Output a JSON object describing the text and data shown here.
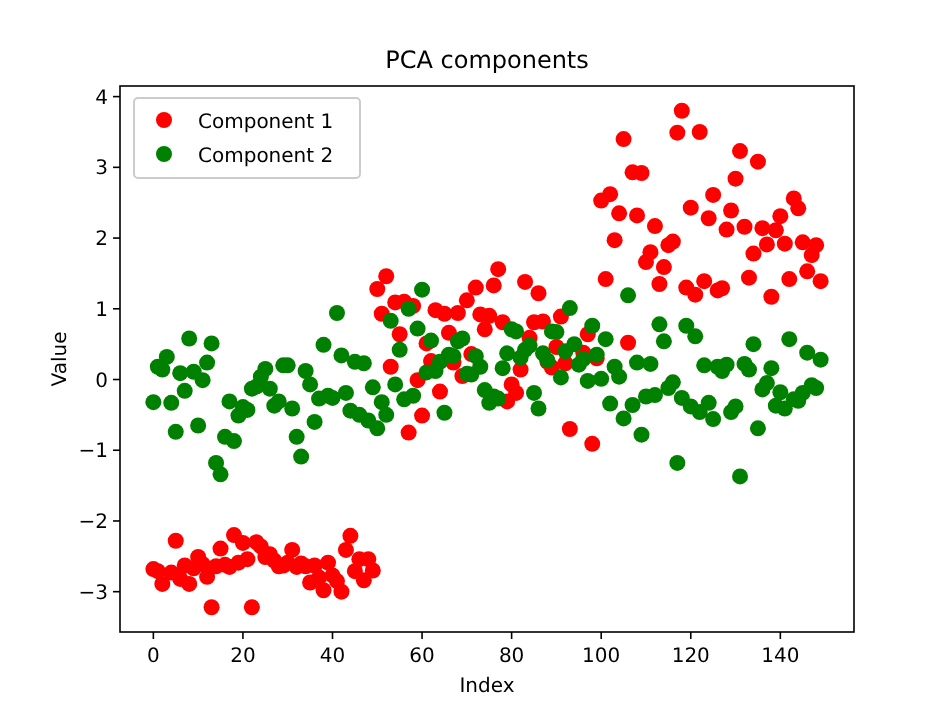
{
  "chart_data": {
    "type": "scatter",
    "title": "PCA components",
    "xlabel": "Index",
    "ylabel": "Value",
    "xlim": [
      -7.45,
      156.45
    ],
    "ylim": [
      -3.57,
      4.15
    ],
    "xticks": [
      0,
      20,
      40,
      60,
      80,
      100,
      120,
      140
    ],
    "yticks": [
      -3,
      -2,
      -1,
      0,
      1,
      2,
      3,
      4
    ],
    "legend": "top left",
    "marker": "circle",
    "grid": false,
    "x": [
      0,
      1,
      2,
      3,
      4,
      5,
      6,
      7,
      8,
      9,
      10,
      11,
      12,
      13,
      14,
      15,
      16,
      17,
      18,
      19,
      20,
      21,
      22,
      23,
      24,
      25,
      26,
      27,
      28,
      29,
      30,
      31,
      32,
      33,
      34,
      35,
      36,
      37,
      38,
      39,
      40,
      41,
      42,
      43,
      44,
      45,
      46,
      47,
      48,
      49,
      50,
      51,
      52,
      53,
      54,
      55,
      56,
      57,
      58,
      59,
      60,
      61,
      62,
      63,
      64,
      65,
      66,
      67,
      68,
      69,
      70,
      71,
      72,
      73,
      74,
      75,
      76,
      77,
      78,
      79,
      80,
      81,
      82,
      83,
      84,
      85,
      86,
      87,
      88,
      89,
      90,
      91,
      92,
      93,
      94,
      95,
      96,
      97,
      98,
      99,
      100,
      101,
      102,
      103,
      104,
      105,
      106,
      107,
      108,
      109,
      110,
      111,
      112,
      113,
      114,
      115,
      116,
      117,
      118,
      119,
      120,
      121,
      122,
      123,
      124,
      125,
      126,
      127,
      128,
      129,
      130,
      131,
      132,
      133,
      134,
      135,
      136,
      137,
      138,
      139,
      140,
      141,
      142,
      143,
      144,
      145,
      146,
      147,
      148,
      149
    ],
    "series": [
      {
        "name": "Component 1",
        "color": "#ff0000",
        "values": [
          -2.68,
          -2.71,
          -2.89,
          null,
          -2.73,
          -2.28,
          -2.82,
          -2.63,
          -2.89,
          -2.67,
          -2.51,
          -2.61,
          -2.79,
          -3.22,
          -2.64,
          -2.39,
          -2.62,
          -2.65,
          -2.2,
          -2.59,
          -2.31,
          -2.54,
          -3.22,
          -2.3,
          -2.36,
          -2.51,
          -2.47,
          -2.56,
          -2.64,
          -2.63,
          -2.59,
          -2.41,
          -2.65,
          -2.6,
          -2.64,
          -2.87,
          -2.63,
          -2.8,
          -2.98,
          -2.59,
          -2.77,
          -2.85,
          -3,
          -2.41,
          -2.21,
          -2.71,
          -2.54,
          -2.84,
          -2.54,
          -2.7,
          1.28,
          0.93,
          1.46,
          0.18,
          1.09,
          0.64,
          1.1,
          -0.75,
          1.04,
          -0.01,
          -0.51,
          0.51,
          0.26,
          0.98,
          -0.17,
          0.93,
          0.66,
          0.24,
          0.94,
          0.05,
          1.12,
          0.36,
          1.3,
          0.92,
          0.71,
          0.9,
          1.33,
          1.56,
          0.81,
          -0.31,
          -0.07,
          -0.19,
          0.14,
          1.38,
          0.59,
          0.81,
          1.22,
          0.82,
          0.25,
          0.17,
          0.46,
          0.89,
          0.23,
          -0.7,
          null,
          null,
          0.38,
          0.64,
          -0.91,
          0.3,
          2.53,
          1.42,
          2.62,
          1.97,
          2.35,
          3.4,
          0.52,
          2.93,
          2.32,
          2.92,
          1.66,
          1.8,
          2.17,
          1.35,
          1.59,
          1.9,
          1.95,
          3.49,
          3.8,
          1.3,
          2.43,
          1.2,
          3.5,
          1.39,
          2.28,
          2.61,
          1.26,
          1.29,
          2.12,
          2.39,
          2.84,
          3.23,
          2.16,
          1.44,
          1.78,
          3.08,
          2.14,
          1.91,
          1.17,
          2.11,
          2.31,
          1.92,
          1.42,
          2.56,
          2.42,
          1.94,
          1.53,
          1.76,
          1.9,
          1.39
        ]
      },
      {
        "name": "Component 2",
        "color": "#008000",
        "values": [
          -0.32,
          0.18,
          0.14,
          0.32,
          -0.33,
          -0.74,
          0.09,
          -0.16,
          0.58,
          0.11,
          -0.65,
          -0.01,
          0.24,
          0.51,
          -1.18,
          -1.34,
          -0.81,
          -0.31,
          -0.87,
          -0.51,
          -0.39,
          -0.43,
          -0.13,
          -0.1,
          0.04,
          0.15,
          -0.13,
          -0.37,
          -0.31,
          0.2,
          0.2,
          -0.41,
          -0.81,
          -1.09,
          0.12,
          -0.07,
          -0.6,
          -0.27,
          0.49,
          -0.23,
          -0.26,
          0.94,
          0.34,
          -0.19,
          -0.44,
          0.25,
          -0.5,
          0.23,
          -0.58,
          -0.11,
          -0.69,
          -0.32,
          -0.5,
          0.83,
          -0.07,
          0.42,
          -0.28,
          1,
          -0.23,
          0.72,
          1.27,
          0.1,
          0.55,
          0.12,
          0.25,
          -0.47,
          0.35,
          0.33,
          0.54,
          0.58,
          0.08,
          0.07,
          0.33,
          0.18,
          -0.15,
          -0.33,
          -0.24,
          -0.27,
          0.16,
          0.37,
          0.71,
          0.68,
          0.31,
          0.42,
          0.48,
          -0.19,
          -0.41,
          0.37,
          0.27,
          0.68,
          0.67,
          0.03,
          0.4,
          1.01,
          0.5,
          0.21,
          0.29,
          -0.02,
          0.76,
          0.35,
          0.01,
          0.57,
          -0.34,
          0.18,
          0.04,
          -0.55,
          1.19,
          -0.36,
          0.24,
          -0.78,
          -0.24,
          0.22,
          -0.22,
          0.78,
          0.54,
          -0.12,
          -0.04,
          -1.18,
          -0.26,
          0.76,
          -0.38,
          0.61,
          -0.46,
          0.2,
          -0.33,
          -0.56,
          0.18,
          0.12,
          0.21,
          -0.46,
          -0.38,
          -1.37,
          0.22,
          0.14,
          0.5,
          -0.69,
          -0.14,
          -0.05,
          0.16,
          -0.37,
          -0.18,
          -0.41,
          0.57,
          -0.28,
          -0.3,
          -0.19,
          0.38,
          -0.08,
          -0.12,
          0.28
        ]
      }
    ]
  }
}
